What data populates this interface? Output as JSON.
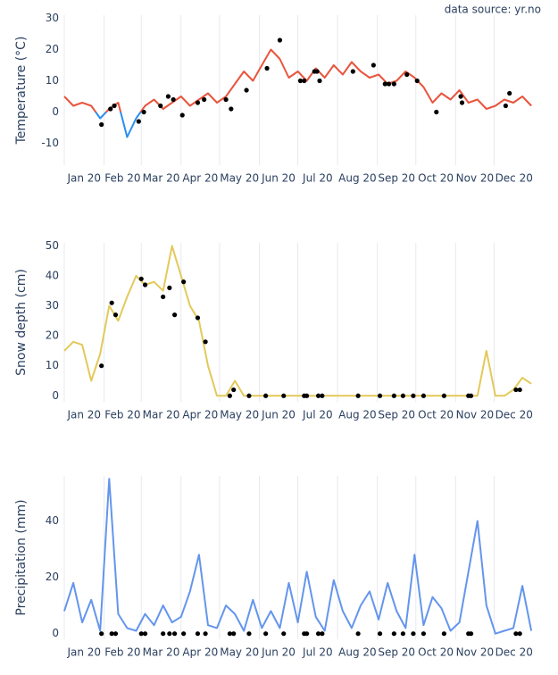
{
  "chart_data": [
    {
      "type": "line",
      "annotation": "data source: yr.no",
      "y_label": "Temperature (°C)",
      "x": [
        0,
        7,
        14,
        21,
        28,
        35,
        42,
        49,
        56,
        63,
        70,
        77,
        84,
        91,
        98,
        105,
        112,
        119,
        126,
        133,
        140,
        147,
        154,
        161,
        168,
        175,
        182,
        189,
        196,
        203,
        210,
        217,
        224,
        231,
        238,
        245,
        252,
        259,
        266,
        273,
        280,
        287,
        294,
        301,
        308,
        315,
        322,
        329,
        336,
        343,
        350,
        357,
        364
      ],
      "series": [
        {
          "color": "#e8553d",
          "negative_color": "#2a8ef0",
          "values": [
            5,
            2,
            3,
            2,
            -2,
            1,
            3,
            -8,
            -2,
            2,
            4,
            1,
            3,
            5,
            2,
            4,
            6,
            3,
            5,
            9,
            13,
            10,
            15,
            20,
            17,
            11,
            13,
            10,
            14,
            11,
            15,
            12,
            16,
            13,
            11,
            12,
            9,
            10,
            13,
            11,
            8,
            3,
            6,
            4,
            7,
            3,
            4,
            1,
            2,
            4,
            3,
            5,
            2
          ]
        }
      ],
      "points": {
        "color": "#000000",
        "x": [
          29,
          36,
          39,
          58,
          62,
          75,
          81,
          85,
          92,
          104,
          109,
          126,
          130,
          142,
          158,
          168,
          184,
          187,
          195,
          197,
          199,
          225,
          241,
          250,
          253,
          257,
          267,
          275,
          290,
          309,
          310,
          344,
          347
        ],
        "values": [
          -4,
          1,
          2,
          -3,
          0,
          2,
          5,
          4,
          -1,
          3,
          4,
          4,
          1,
          7,
          14,
          23,
          10,
          10,
          13,
          13,
          10,
          13,
          15,
          9,
          9,
          9,
          12,
          10,
          0,
          5,
          3,
          2,
          6
        ]
      },
      "xlim": [
        0,
        366
      ],
      "xticks": [
        {
          "value": 0,
          "label": "Jan 20"
        },
        {
          "value": 31,
          "label": "Feb 20"
        },
        {
          "value": 60,
          "label": "Mar 20"
        },
        {
          "value": 91,
          "label": "Apr 20"
        },
        {
          "value": 121,
          "label": "May 20"
        },
        {
          "value": 152,
          "label": "Jun 20"
        },
        {
          "value": 182,
          "label": "Jul 20"
        },
        {
          "value": 213,
          "label": "Aug 20"
        },
        {
          "value": 244,
          "label": "Sep 20"
        },
        {
          "value": 274,
          "label": "Oct 20"
        },
        {
          "value": 305,
          "label": "Nov 20"
        },
        {
          "value": 335,
          "label": "Dec 20"
        }
      ],
      "ylim": [
        -17,
        31
      ],
      "yticks": [
        -10,
        0,
        10,
        20,
        30
      ],
      "grid": true
    },
    {
      "type": "line",
      "y_label": "Snow depth (cm)",
      "x": [
        0,
        7,
        14,
        21,
        28,
        35,
        42,
        49,
        56,
        63,
        70,
        77,
        84,
        91,
        98,
        105,
        112,
        119,
        126,
        133,
        140,
        147,
        154,
        161,
        168,
        175,
        182,
        189,
        196,
        203,
        210,
        217,
        224,
        231,
        238,
        245,
        252,
        259,
        266,
        273,
        280,
        287,
        294,
        301,
        308,
        315,
        322,
        329,
        336,
        343,
        350,
        357,
        364
      ],
      "series": [
        {
          "color": "#e3c95a",
          "values": [
            15,
            18,
            17,
            5,
            14,
            30,
            25,
            33,
            40,
            37,
            38,
            35,
            50,
            40,
            30,
            25,
            10,
            0,
            0,
            5,
            0,
            0,
            0,
            0,
            0,
            0,
            0,
            0,
            0,
            0,
            0,
            0,
            0,
            0,
            0,
            0,
            0,
            0,
            0,
            0,
            0,
            0,
            0,
            0,
            0,
            0,
            0,
            15,
            0,
            0,
            2,
            6,
            4
          ]
        }
      ],
      "points": {
        "color": "#000000",
        "x": [
          29,
          37,
          40,
          60,
          63,
          77,
          82,
          86,
          93,
          104,
          110,
          129,
          132,
          144,
          157,
          171,
          187,
          189,
          198,
          201,
          229,
          246,
          257,
          264,
          272,
          280,
          296,
          315,
          317,
          352,
          355
        ],
        "values": [
          10,
          31,
          27,
          39,
          37,
          33,
          36,
          27,
          38,
          26,
          18,
          0,
          2,
          0,
          0,
          0,
          0,
          0,
          0,
          0,
          0,
          0,
          0,
          0,
          0,
          0,
          0,
          0,
          0,
          2,
          2
        ]
      },
      "xlim": [
        0,
        366
      ],
      "xticks": [
        {
          "value": 0,
          "label": "Jan 20"
        },
        {
          "value": 31,
          "label": "Feb 20"
        },
        {
          "value": 60,
          "label": "Mar 20"
        },
        {
          "value": 91,
          "label": "Apr 20"
        },
        {
          "value": 121,
          "label": "May 20"
        },
        {
          "value": 152,
          "label": "Jun 20"
        },
        {
          "value": 182,
          "label": "Jul 20"
        },
        {
          "value": 213,
          "label": "Aug 20"
        },
        {
          "value": 244,
          "label": "Sep 20"
        },
        {
          "value": 274,
          "label": "Oct 20"
        },
        {
          "value": 305,
          "label": "Nov 20"
        },
        {
          "value": 335,
          "label": "Dec 20"
        }
      ],
      "ylim": [
        -2,
        51
      ],
      "yticks": [
        0,
        10,
        20,
        30,
        40,
        50
      ],
      "grid": true
    },
    {
      "type": "line",
      "y_label": "Precipitation (mm)",
      "x": [
        0,
        7,
        14,
        21,
        28,
        35,
        42,
        49,
        56,
        63,
        70,
        77,
        84,
        91,
        98,
        105,
        112,
        119,
        126,
        133,
        140,
        147,
        154,
        161,
        168,
        175,
        182,
        189,
        196,
        203,
        210,
        217,
        224,
        231,
        238,
        245,
        252,
        259,
        266,
        273,
        280,
        287,
        294,
        301,
        308,
        315,
        322,
        329,
        336,
        343,
        350,
        357,
        364
      ],
      "series": [
        {
          "color": "#6495ed",
          "values": [
            8,
            18,
            4,
            12,
            1,
            55,
            7,
            2,
            1,
            7,
            3,
            10,
            4,
            6,
            15,
            28,
            3,
            2,
            10,
            7,
            1,
            12,
            2,
            8,
            2,
            18,
            4,
            22,
            6,
            1,
            19,
            8,
            2,
            10,
            15,
            5,
            18,
            8,
            2,
            28,
            3,
            13,
            9,
            1,
            4,
            22,
            40,
            10,
            0,
            1,
            2,
            17,
            1
          ]
        }
      ],
      "points": {
        "color": "#000000",
        "x": [
          29,
          37,
          40,
          60,
          63,
          77,
          82,
          86,
          93,
          104,
          110,
          129,
          132,
          144,
          157,
          171,
          187,
          189,
          198,
          201,
          229,
          246,
          257,
          264,
          272,
          280,
          296,
          315,
          317,
          352,
          355
        ],
        "values": [
          0,
          0,
          0,
          0,
          0,
          0,
          0,
          0,
          0,
          0,
          0,
          0,
          0,
          0,
          0,
          0,
          0,
          0,
          0,
          0,
          0,
          0,
          0,
          0,
          0,
          0,
          0,
          0,
          0,
          0,
          0
        ]
      },
      "xlim": [
        0,
        366
      ],
      "xticks": [
        {
          "value": 0,
          "label": "Jan 20"
        },
        {
          "value": 31,
          "label": "Feb 20"
        },
        {
          "value": 60,
          "label": "Mar 20"
        },
        {
          "value": 91,
          "label": "Apr 20"
        },
        {
          "value": 121,
          "label": "May 20"
        },
        {
          "value": 152,
          "label": "Jun 20"
        },
        {
          "value": 182,
          "label": "Jul 20"
        },
        {
          "value": 213,
          "label": "Aug 20"
        },
        {
          "value": 244,
          "label": "Sep 20"
        },
        {
          "value": 274,
          "label": "Oct 20"
        },
        {
          "value": 305,
          "label": "Nov 20"
        },
        {
          "value": 335,
          "label": "Dec 20"
        }
      ],
      "ylim": [
        -2,
        56
      ],
      "yticks": [
        0,
        20,
        40
      ],
      "grid": true
    }
  ]
}
